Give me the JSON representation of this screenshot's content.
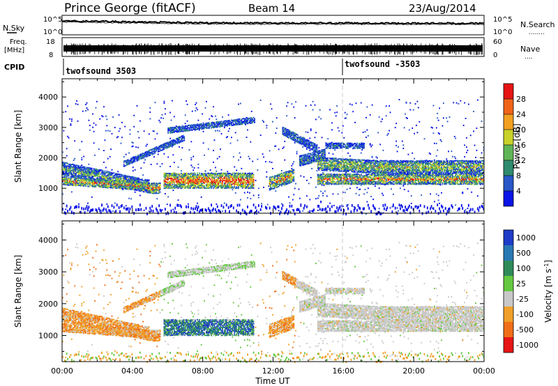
{
  "header": {
    "station": "Prince George (fitACF)",
    "beam": "Beam 14",
    "date": "23/Aug/2014"
  },
  "noise_panel": {
    "left_label": "N.Sky",
    "right_label": "N.Search",
    "right_marker": "........",
    "ticks_left": [
      "10^5",
      "10^0"
    ],
    "ticks_right": [
      "10^5",
      "10^0"
    ]
  },
  "freq_panel": {
    "left_label_1": "Freq.",
    "left_label_2": "[MHz]",
    "right_label": "Nave",
    "right_marker": "....",
    "ticks_left": [
      "18",
      "8"
    ],
    "ticks_right": [
      "60",
      "0"
    ]
  },
  "cpid_panel": {
    "label": "CPID",
    "programs": [
      {
        "name": "twofsound 3503",
        "start_hour": 0
      },
      {
        "name": "twofsound -3503",
        "start_hour": 16
      }
    ]
  },
  "chart_data": [
    {
      "type": "heatmap",
      "name": "power",
      "ylabel": "Slant Range [km]",
      "yticks": [
        "1000",
        "2000",
        "3000",
        "4000"
      ],
      "ylim": [
        180,
        4600
      ],
      "colorbar_label": "Power [dB]",
      "colorbar_ticks": [
        "4",
        "8",
        "12",
        "16",
        "20",
        "24",
        "28"
      ],
      "colorbar_colors": [
        "#0a14e6",
        "#2858c8",
        "#2e8a6e",
        "#5fb556",
        "#c8d22a",
        "#f2a020",
        "#f06418",
        "#e61414"
      ],
      "colorbar_range": [
        0,
        32
      ]
    },
    {
      "type": "heatmap",
      "name": "velocity",
      "ylabel": "Slant Range [km]",
      "yticks": [
        "1000",
        "2000",
        "3000",
        "4000"
      ],
      "ylim": [
        180,
        4600
      ],
      "colorbar_label": "Velocity [m s^-1]",
      "colorbar_ticks": [
        "1000",
        "500",
        "100",
        "25",
        "-25",
        "-100",
        "-500",
        "-1000"
      ],
      "colorbar_colors": [
        "#1e3cc8",
        "#2878b4",
        "#2e8a5a",
        "#64c840",
        "#c8c8c8",
        "#f0a028",
        "#f06e18",
        "#e61414"
      ]
    }
  ],
  "xaxis": {
    "label": "Time UT",
    "ticks": [
      "00:00",
      "04:00",
      "08:00",
      "12:00",
      "16:00",
      "20:00",
      "00:00"
    ],
    "range_hours": [
      0,
      24
    ]
  },
  "colors": {
    "blue": "#1e28e6",
    "teal": "#2e8a6e",
    "green": "#5fb556",
    "yellow": "#c8d22a",
    "orange": "#f2a020",
    "red": "#e61414",
    "gray": "#c8c8c8"
  }
}
